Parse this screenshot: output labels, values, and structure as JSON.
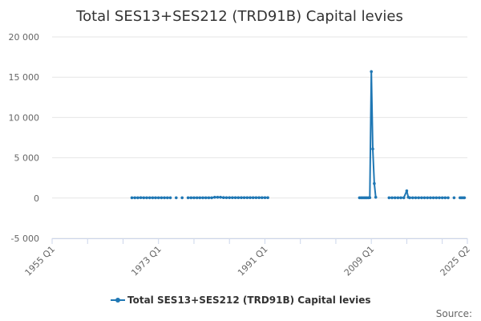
{
  "chart_data": {
    "type": "line",
    "title": "Total SES13+SES212 (TRD91B) Capital levies",
    "xlabel": "",
    "ylabel": "",
    "ylim": [
      -5000,
      20000
    ],
    "yticks": [
      {
        "value": 20000,
        "label": "20 000"
      },
      {
        "value": 15000,
        "label": "15 000"
      },
      {
        "value": 10000,
        "label": "10 000"
      },
      {
        "value": 5000,
        "label": "5 000"
      },
      {
        "value": 0,
        "label": "0"
      },
      {
        "value": -5000,
        "label": "-5 000"
      }
    ],
    "xlim": [
      1955.0,
      2025.25
    ],
    "xticks": [
      {
        "value": 1955.0,
        "label": "1955 Q1"
      },
      {
        "value": 1973.0,
        "label": "1973 Q1"
      },
      {
        "value": 1991.0,
        "label": "1991 Q1"
      },
      {
        "value": 2009.0,
        "label": "2009 Q1"
      },
      {
        "value": 2025.25,
        "label": "2025 Q2"
      }
    ],
    "minor_xticks": [
      1961.0,
      1967.0,
      1979.0,
      1985.0,
      1997.0,
      2003.0,
      2015.0,
      2021.0
    ],
    "grid": true,
    "legend_position": "bottom",
    "series": [
      {
        "name": "Total SES13+SES212 (TRD91B) Capital levies",
        "color": "#1f77b4",
        "points": [
          [
            1968.5,
            40
          ],
          [
            1969.0,
            40
          ],
          [
            1969.5,
            40
          ],
          [
            1970.0,
            50
          ],
          [
            1970.5,
            40
          ],
          [
            1971.0,
            40
          ],
          [
            1971.5,
            40
          ],
          [
            1972.0,
            40
          ],
          [
            1972.5,
            40
          ],
          [
            1973.0,
            40
          ],
          [
            1973.5,
            40
          ],
          [
            1974.0,
            40
          ],
          [
            1974.5,
            40
          ],
          [
            1975.0,
            40
          ],
          [
            1976.0,
            40
          ],
          [
            1977.0,
            40
          ],
          [
            1978.0,
            40
          ],
          [
            1978.5,
            40
          ],
          [
            1979.0,
            40
          ],
          [
            1979.5,
            40
          ],
          [
            1980.0,
            40
          ],
          [
            1980.5,
            40
          ],
          [
            1981.0,
            40
          ],
          [
            1981.5,
            40
          ],
          [
            1982.0,
            40
          ],
          [
            1982.5,
            100
          ],
          [
            1983.0,
            100
          ],
          [
            1983.5,
            100
          ],
          [
            1984.0,
            60
          ],
          [
            1984.5,
            50
          ],
          [
            1985.0,
            50
          ],
          [
            1985.5,
            50
          ],
          [
            1986.0,
            50
          ],
          [
            1986.5,
            50
          ],
          [
            1987.0,
            50
          ],
          [
            1987.5,
            50
          ],
          [
            1988.0,
            50
          ],
          [
            1988.5,
            50
          ],
          [
            1989.0,
            50
          ],
          [
            1989.5,
            50
          ],
          [
            1990.0,
            50
          ],
          [
            1990.5,
            50
          ],
          [
            1991.0,
            50
          ],
          [
            1991.5,
            50
          ],
          [
            2007.0,
            40
          ],
          [
            2007.25,
            40
          ],
          [
            2007.5,
            40
          ],
          [
            2007.75,
            40
          ],
          [
            2008.0,
            40
          ],
          [
            2008.25,
            40
          ],
          [
            2008.5,
            40
          ],
          [
            2008.75,
            50
          ],
          [
            2009.0,
            15700
          ],
          [
            2009.25,
            6100
          ],
          [
            2009.5,
            1800
          ],
          [
            2009.75,
            100
          ],
          [
            2012.0,
            40
          ],
          [
            2012.5,
            40
          ],
          [
            2013.0,
            40
          ],
          [
            2013.5,
            40
          ],
          [
            2014.0,
            40
          ],
          [
            2014.5,
            40
          ],
          [
            2015.0,
            900
          ],
          [
            2015.25,
            100
          ],
          [
            2015.5,
            40
          ],
          [
            2016.0,
            40
          ],
          [
            2016.5,
            40
          ],
          [
            2017.0,
            40
          ],
          [
            2017.5,
            40
          ],
          [
            2018.0,
            40
          ],
          [
            2018.5,
            40
          ],
          [
            2019.0,
            40
          ],
          [
            2019.5,
            40
          ],
          [
            2020.0,
            40
          ],
          [
            2020.5,
            40
          ],
          [
            2021.0,
            40
          ],
          [
            2021.5,
            40
          ],
          [
            2022.0,
            40
          ],
          [
            2023.0,
            40
          ],
          [
            2024.0,
            40
          ],
          [
            2024.25,
            40
          ],
          [
            2024.5,
            40
          ],
          [
            2024.75,
            40
          ]
        ],
        "segments": [
          [
            0,
            13
          ],
          [
            16,
            43
          ],
          [
            44,
            55
          ],
          [
            56,
            77
          ],
          [
            79,
            82
          ]
        ]
      }
    ],
    "legend_label": "Total SES13+SES212 (TRD91B) Capital levies",
    "source_label": "Source:"
  }
}
